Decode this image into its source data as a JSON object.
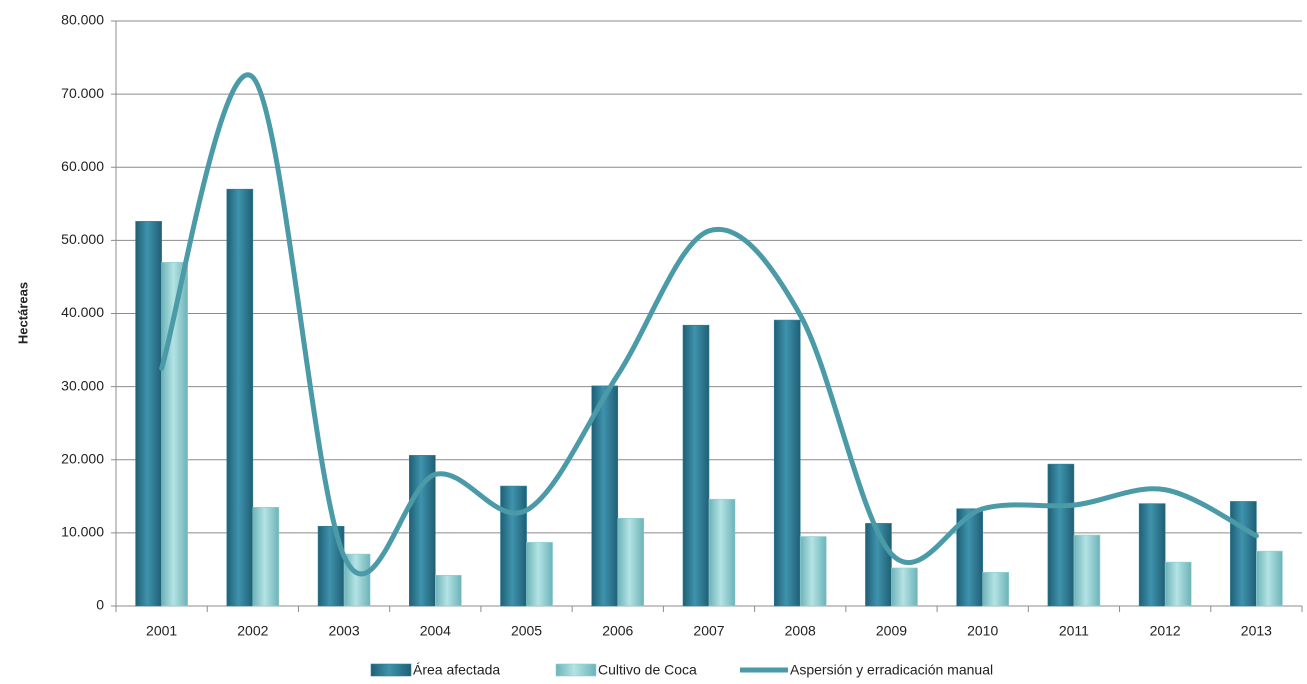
{
  "chart_data": {
    "type": "bar",
    "y_label": "Hectáreas",
    "categories": [
      "2001",
      "2002",
      "2003",
      "2004",
      "2005",
      "2006",
      "2007",
      "2008",
      "2009",
      "2010",
      "2011",
      "2012",
      "2013"
    ],
    "series": [
      {
        "name": "Área afectada",
        "color": "#2f7f98",
        "values": [
          52600,
          57000,
          10900,
          20600,
          16400,
          30100,
          38400,
          39100,
          11300,
          13300,
          19400,
          14000,
          14300
        ]
      },
      {
        "name": "Cultivo de Coca",
        "color": "#8fcfd2",
        "values": [
          47000,
          13500,
          7100,
          4200,
          8700,
          12000,
          14600,
          9500,
          5200,
          4600,
          9700,
          6000,
          7500
        ]
      },
      {
        "name": "Aspersión y erradicación manual",
        "type": "line",
        "color": "#4a9aa8",
        "values": [
          32500,
          72300,
          6800,
          18000,
          13100,
          31600,
          51300,
          39800,
          7100,
          13300,
          13800,
          15900,
          9600
        ]
      }
    ],
    "ylim": [
      0,
      80000
    ],
    "yticks": [
      0,
      {
        "value": 10000,
        "label": "10.000"
      },
      {
        "value": 20000,
        "label": "20.000"
      },
      {
        "value": 30000,
        "label": "30.000"
      },
      {
        "value": 40000,
        "label": "40.000"
      },
      {
        "value": 50000,
        "label": "50.000"
      },
      {
        "value": 60000,
        "label": "60.000"
      },
      {
        "value": 70000,
        "label": "70.000"
      },
      {
        "value": 80000,
        "label": "80.000"
      }
    ],
    "grid": true,
    "legend": "bottom"
  }
}
